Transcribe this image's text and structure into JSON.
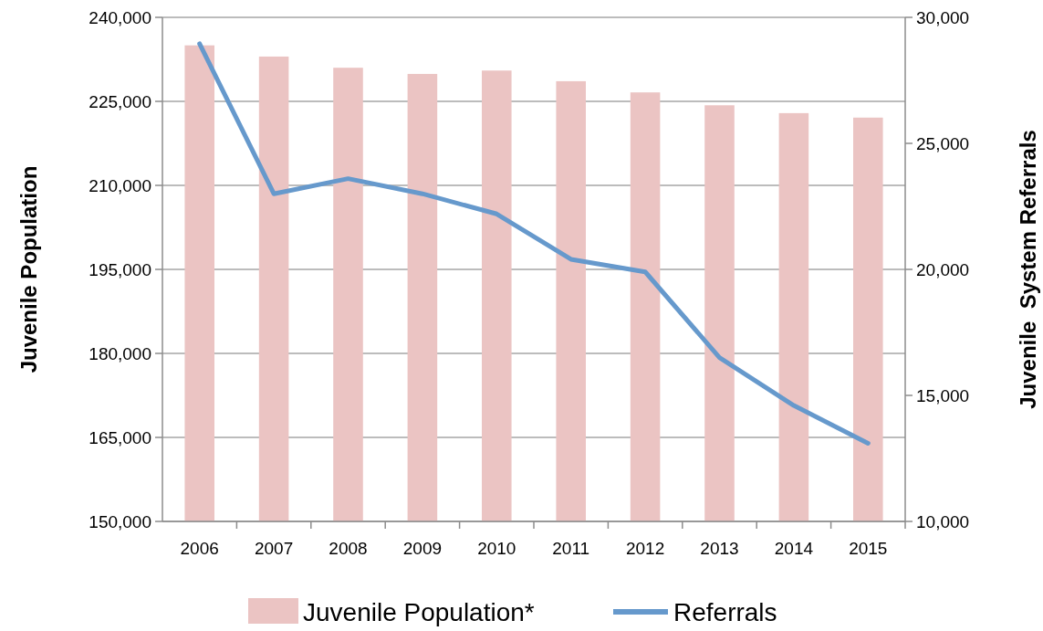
{
  "chart_data": {
    "type": "bar",
    "ylabel": "Juvenile Population",
    "y2label": "Juvenile  System Referrals",
    "categories": [
      "2006",
      "2007",
      "2008",
      "2009",
      "2010",
      "2011",
      "2012",
      "2013",
      "2014",
      "2015"
    ],
    "series": [
      {
        "name": "Juvenile Population*",
        "color": "#ebc4c3",
        "values": [
          235000,
          233000,
          231000,
          229900,
          230500,
          228600,
          226600,
          224300,
          222900,
          222100
        ]
      },
      {
        "name": "Referrals",
        "type": "line",
        "axis": "y2",
        "color": "#6699cc",
        "values": [
          28950,
          23000,
          23600,
          23000,
          22200,
          20400,
          19900,
          16500,
          14600,
          13100
        ]
      }
    ],
    "ylim": [
      150000,
      240000
    ],
    "yticks": [
      {
        "value": 150000,
        "label": "150,000"
      },
      {
        "value": 165000,
        "label": "165,000"
      },
      {
        "value": 180000,
        "label": "180,000"
      },
      {
        "value": 195000,
        "label": "195,000"
      },
      {
        "value": 210000,
        "label": "210,000"
      },
      {
        "value": 225000,
        "label": "225,000"
      },
      {
        "value": 240000,
        "label": "240,000"
      }
    ],
    "y2lim": [
      10000,
      30000
    ],
    "y2ticks": [
      {
        "value": 10000,
        "label": "10,000"
      },
      {
        "value": 15000,
        "label": "15,000"
      },
      {
        "value": 20000,
        "label": "20,000"
      },
      {
        "value": 25000,
        "label": "25,000"
      },
      {
        "value": 30000,
        "label": "30,000"
      }
    ],
    "grid": "y",
    "legend": "bottom",
    "marker": "none",
    "line_style": "solid"
  }
}
